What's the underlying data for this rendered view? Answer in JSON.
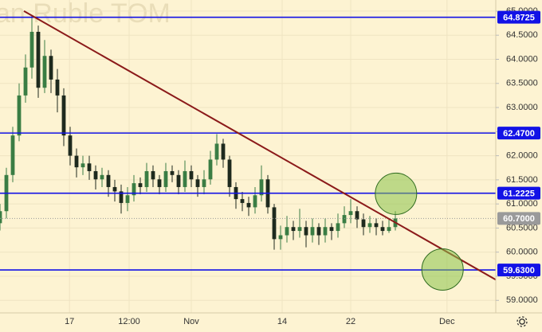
{
  "chart_data": {
    "type": "candlestick",
    "watermark": "an Ruble TOM",
    "x": [
      0,
      1,
      2,
      3,
      4,
      5,
      6,
      7,
      8,
      9,
      10,
      11,
      12,
      13,
      14,
      15,
      16,
      17,
      18,
      19,
      20,
      21,
      22,
      23,
      24,
      25,
      26,
      27,
      28,
      29,
      30,
      31,
      32,
      33,
      34,
      35,
      36,
      37,
      38,
      39,
      40,
      41,
      42,
      43,
      44,
      45,
      46,
      47,
      48,
      49,
      50,
      51,
      52,
      53,
      54,
      55,
      56,
      57,
      58,
      59,
      60,
      61,
      62
    ],
    "ohlc": [
      [
        60.6,
        61.0,
        60.45,
        60.85
      ],
      [
        60.85,
        61.75,
        60.7,
        61.6
      ],
      [
        61.6,
        62.6,
        61.45,
        62.42
      ],
      [
        62.42,
        63.5,
        62.3,
        63.25
      ],
      [
        63.25,
        64.1,
        63.1,
        63.83
      ],
      [
        63.83,
        64.9,
        63.6,
        64.57
      ],
      [
        64.57,
        64.7,
        63.2,
        63.41
      ],
      [
        63.41,
        64.4,
        63.3,
        64.07
      ],
      [
        64.07,
        64.2,
        63.3,
        63.58
      ],
      [
        63.58,
        63.8,
        62.9,
        63.25
      ],
      [
        63.25,
        63.4,
        62.2,
        62.42
      ],
      [
        62.42,
        62.6,
        61.8,
        62.0
      ],
      [
        62.0,
        62.15,
        61.55,
        61.76
      ],
      [
        61.76,
        62.0,
        61.6,
        61.84
      ],
      [
        61.84,
        62.0,
        61.5,
        61.68
      ],
      [
        61.68,
        61.8,
        61.3,
        61.51
      ],
      [
        61.51,
        61.75,
        61.35,
        61.6
      ],
      [
        61.6,
        61.7,
        61.15,
        61.35
      ],
      [
        61.35,
        61.5,
        61.05,
        61.26
      ],
      [
        61.26,
        61.4,
        60.8,
        61.02
      ],
      [
        61.02,
        61.35,
        60.85,
        61.18
      ],
      [
        61.18,
        61.6,
        61.05,
        61.43
      ],
      [
        61.43,
        61.55,
        61.2,
        61.35
      ],
      [
        61.35,
        61.85,
        61.25,
        61.68
      ],
      [
        61.68,
        61.8,
        61.35,
        61.51
      ],
      [
        61.51,
        61.6,
        61.2,
        61.35
      ],
      [
        61.35,
        61.85,
        61.25,
        61.68
      ],
      [
        61.68,
        61.8,
        61.45,
        61.6
      ],
      [
        61.6,
        61.7,
        61.2,
        61.35
      ],
      [
        61.35,
        61.9,
        61.25,
        61.68
      ],
      [
        61.68,
        61.8,
        61.35,
        61.51
      ],
      [
        61.51,
        61.6,
        61.15,
        61.35
      ],
      [
        61.35,
        61.7,
        61.2,
        61.51
      ],
      [
        61.51,
        62.1,
        61.4,
        61.92
      ],
      [
        61.92,
        62.45,
        61.8,
        62.25
      ],
      [
        62.25,
        62.35,
        61.75,
        61.92
      ],
      [
        61.92,
        62.0,
        61.15,
        61.35
      ],
      [
        61.35,
        61.45,
        60.9,
        61.1
      ],
      [
        61.1,
        61.25,
        60.85,
        61.02
      ],
      [
        61.02,
        61.15,
        60.75,
        60.93
      ],
      [
        60.93,
        61.35,
        60.8,
        61.18
      ],
      [
        61.18,
        61.8,
        61.05,
        61.51
      ],
      [
        61.51,
        61.6,
        60.8,
        60.93
      ],
      [
        60.93,
        61.0,
        60.05,
        60.27
      ],
      [
        60.27,
        60.55,
        60.05,
        60.35
      ],
      [
        60.35,
        60.75,
        60.2,
        60.52
      ],
      [
        60.52,
        60.65,
        60.25,
        60.44
      ],
      [
        60.44,
        60.9,
        60.3,
        60.52
      ],
      [
        60.52,
        60.65,
        60.1,
        60.35
      ],
      [
        60.35,
        60.7,
        60.2,
        60.52
      ],
      [
        60.52,
        60.6,
        60.15,
        60.35
      ],
      [
        60.35,
        60.7,
        60.2,
        60.52
      ],
      [
        60.52,
        60.6,
        60.25,
        60.44
      ],
      [
        60.44,
        60.8,
        60.3,
        60.6
      ],
      [
        60.6,
        60.95,
        60.5,
        60.77
      ],
      [
        60.77,
        61.1,
        60.6,
        60.85
      ],
      [
        60.85,
        60.95,
        60.5,
        60.68
      ],
      [
        60.68,
        60.8,
        60.35,
        60.52
      ],
      [
        60.52,
        60.75,
        60.4,
        60.6
      ],
      [
        60.6,
        60.7,
        60.35,
        60.52
      ],
      [
        60.52,
        60.65,
        60.35,
        60.44
      ],
      [
        60.44,
        60.7,
        60.4,
        60.52
      ],
      [
        60.52,
        60.85,
        60.45,
        60.7
      ]
    ],
    "up_color": "#3a7d44",
    "down_color": "#1e2a1e",
    "xlim": [
      0,
      77.75
    ],
    "ylim": [
      58.74,
      65.23
    ],
    "yticks": [
      {
        "value": 59.0,
        "label": "59.0000"
      },
      {
        "value": 59.5,
        "label": "59.5000"
      },
      {
        "value": 60.0,
        "label": "60.0000"
      },
      {
        "value": 60.5,
        "label": "60.5000"
      },
      {
        "value": 61.0,
        "label": "61.0000"
      },
      {
        "value": 61.5,
        "label": "61.5000"
      },
      {
        "value": 62.0,
        "label": "62.0000"
      },
      {
        "value": 62.5,
        "label": "62.5000"
      },
      {
        "value": 63.0,
        "label": "63.0000"
      },
      {
        "value": 63.5,
        "label": "63.5000"
      },
      {
        "value": 64.0,
        "label": "64.0000"
      },
      {
        "value": 64.5,
        "label": "64.5000"
      },
      {
        "value": 65.0,
        "label": "65.0000"
      }
    ],
    "xticks": [
      {
        "value": 10.9,
        "label": "17"
      },
      {
        "value": 20.25,
        "label": "12:00"
      },
      {
        "value": 30,
        "label": "Nov"
      },
      {
        "value": 44.25,
        "label": "14"
      },
      {
        "value": 55,
        "label": "22"
      },
      {
        "value": 70.1,
        "label": "Dec"
      }
    ],
    "grid": true,
    "levels": [
      {
        "value": 64.8725,
        "label": "64.8725"
      },
      {
        "value": 62.47,
        "label": "62.4700"
      },
      {
        "value": 61.2225,
        "label": "61.2225"
      },
      {
        "value": 59.63,
        "label": "59.6300"
      }
    ],
    "level_color": "#1212e6",
    "last_price": {
      "value": 60.7,
      "label": "60.7000"
    },
    "trendline": {
      "color": "#8b1a1a",
      "x": [
        3.75,
        78
      ],
      "y": [
        65.0,
        59.41
      ]
    },
    "circles": [
      {
        "x": 62.1,
        "y": 61.21
      },
      {
        "x": 69.4,
        "y": 59.64
      }
    ],
    "circle_color": "#8bc34a"
  }
}
